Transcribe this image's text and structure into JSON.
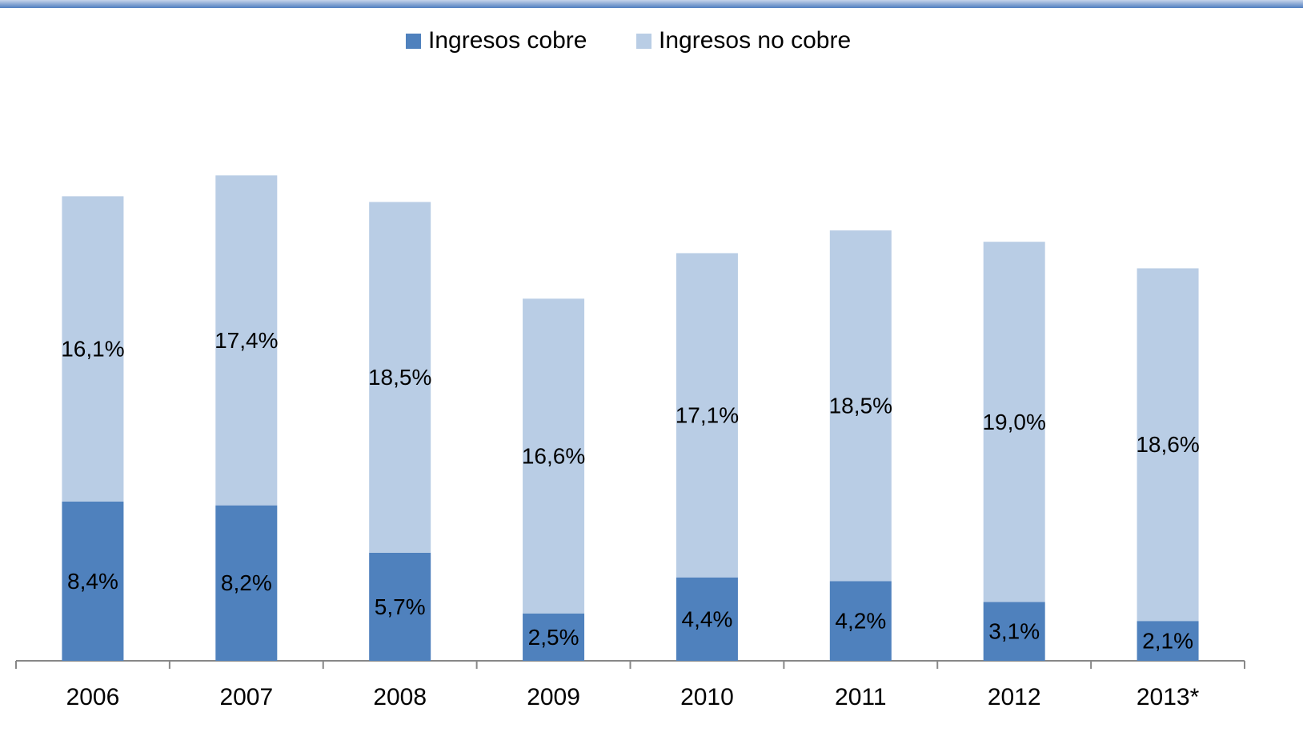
{
  "chart_data": {
    "type": "stacked-bar",
    "categories": [
      "2006",
      "2007",
      "2008",
      "2009",
      "2010",
      "2011",
      "2012",
      "2013*"
    ],
    "series": [
      {
        "name": "Ingresos cobre",
        "color": "#4f81bd",
        "values": [
          8.4,
          8.2,
          5.7,
          2.5,
          4.4,
          4.2,
          3.1,
          2.1
        ],
        "value_labels": [
          "8,4%",
          "8,2%",
          "5,7%",
          "2,5%",
          "4,4%",
          "4,2%",
          "3,1%",
          "2,1%"
        ]
      },
      {
        "name": "Ingresos no cobre",
        "color": "#b9cde5",
        "values": [
          16.1,
          17.4,
          18.5,
          16.6,
          17.1,
          18.5,
          19.0,
          18.6
        ],
        "value_labels": [
          "16,1%",
          "17,4%",
          "18,5%",
          "16,6%",
          "17,1%",
          "18,5%",
          "19,0%",
          "18,6%"
        ]
      }
    ],
    "legend": "top"
  }
}
